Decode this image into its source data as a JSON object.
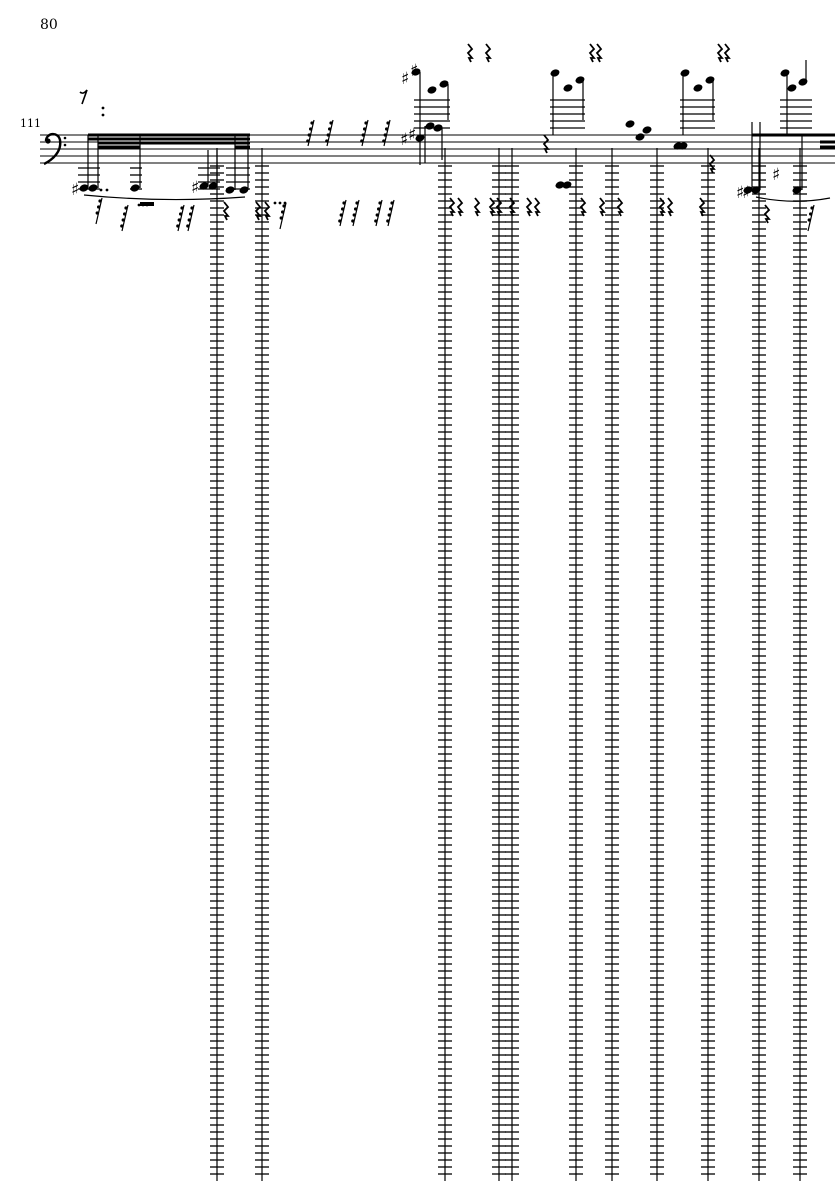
{
  "page": {
    "number": "80"
  },
  "system": {
    "measure_number": "111",
    "clef": "bass-clef",
    "staff_lines": 5,
    "ink_color": "#000000"
  }
}
